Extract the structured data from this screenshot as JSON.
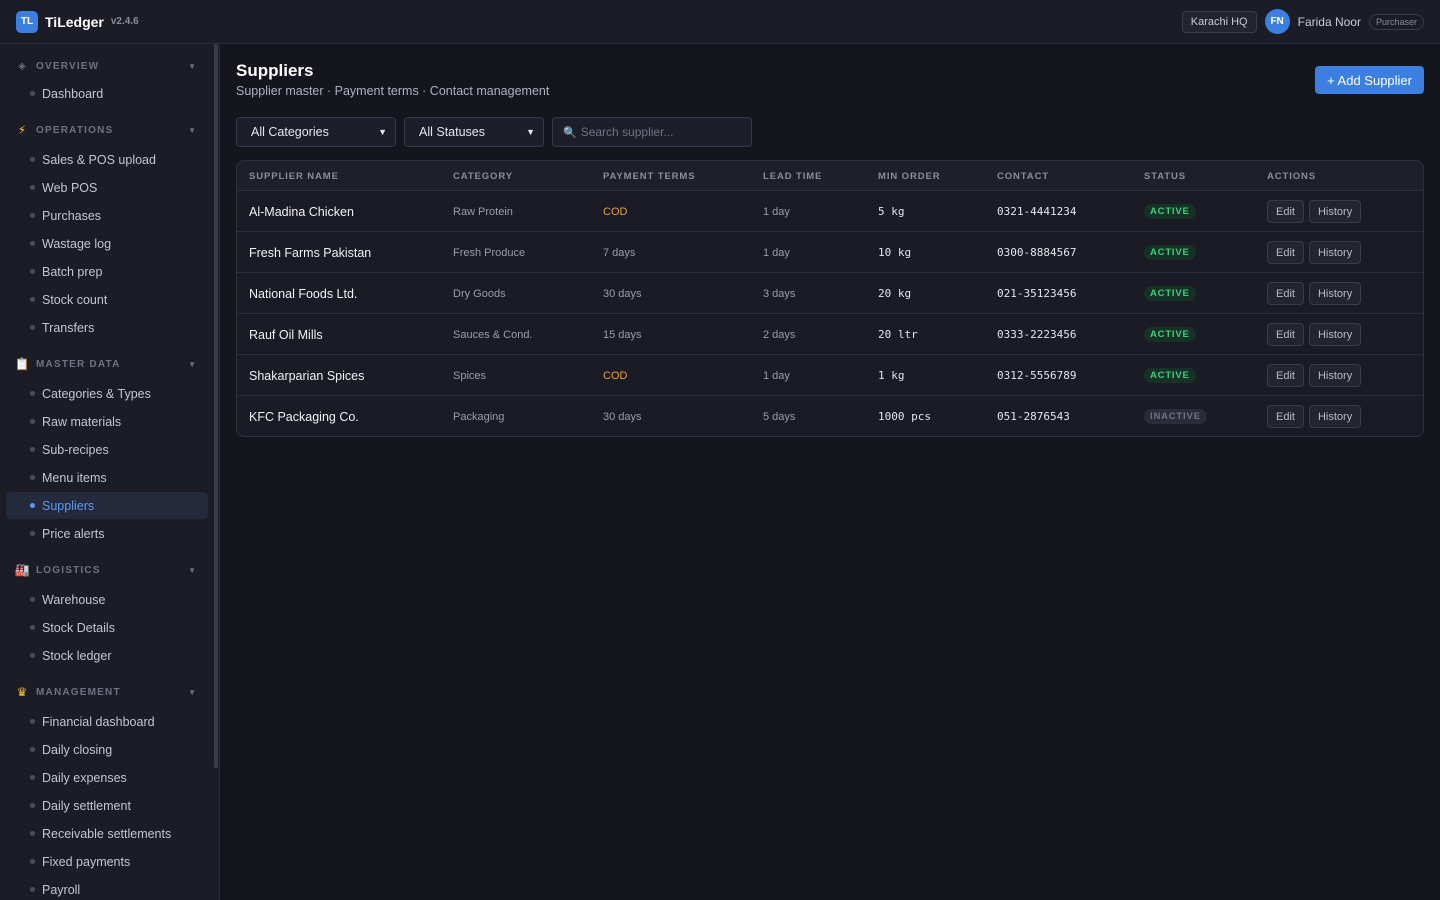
{
  "app": {
    "logo": "TL",
    "name": "TiLedger",
    "version": "v2.4.6"
  },
  "header": {
    "branch": "Karachi HQ",
    "user_initials": "FN",
    "user_name": "Farida Noor",
    "user_role": "Purchaser"
  },
  "sidebar": {
    "sections": [
      {
        "icon": "diamond-icon",
        "label": "OVERVIEW",
        "items": [
          "Dashboard"
        ]
      },
      {
        "icon": "lightning-icon",
        "label": "OPERATIONS",
        "items": [
          "Sales & POS upload",
          "Web POS",
          "Purchases",
          "Wastage log",
          "Batch prep",
          "Stock count",
          "Transfers"
        ]
      },
      {
        "icon": "clipboard-icon",
        "label": "MASTER DATA",
        "items": [
          "Categories & Types",
          "Raw materials",
          "Sub-recipes",
          "Menu items",
          "Suppliers",
          "Price alerts"
        ]
      },
      {
        "icon": "warehouse-icon",
        "label": "LOGISTICS",
        "items": [
          "Warehouse",
          "Stock Details",
          "Stock ledger"
        ]
      },
      {
        "icon": "crown-icon",
        "label": "MANAGEMENT",
        "items": [
          "Financial dashboard",
          "Daily closing",
          "Daily expenses",
          "Daily settlement",
          "Receivable settlements",
          "Fixed payments",
          "Payroll"
        ]
      }
    ],
    "active_item": "Suppliers"
  },
  "page": {
    "title": "Suppliers",
    "subtitle": "Supplier master · Payment terms · Contact management",
    "add_button": "+ Add Supplier"
  },
  "filters": {
    "category": "All Categories",
    "status": "All Statuses",
    "search_placeholder": "Search supplier..."
  },
  "table": {
    "columns": [
      "SUPPLIER NAME",
      "CATEGORY",
      "PAYMENT TERMS",
      "LEAD TIME",
      "MIN ORDER",
      "CONTACT",
      "STATUS",
      "ACTIONS"
    ],
    "rows": [
      {
        "name": "Al-Madina Chicken",
        "category": "Raw Protein",
        "terms": "COD",
        "lead": "1 day",
        "min_order": "5 kg",
        "contact": "0321-4441234",
        "status": "ACTIVE"
      },
      {
        "name": "Fresh Farms Pakistan",
        "category": "Fresh Produce",
        "terms": "7 days",
        "lead": "1 day",
        "min_order": "10 kg",
        "contact": "0300-8884567",
        "status": "ACTIVE"
      },
      {
        "name": "National Foods Ltd.",
        "category": "Dry Goods",
        "terms": "30 days",
        "lead": "3 days",
        "min_order": "20 kg",
        "contact": "021-35123456",
        "status": "ACTIVE"
      },
      {
        "name": "Rauf Oil Mills",
        "category": "Sauces & Cond.",
        "terms": "15 days",
        "lead": "2 days",
        "min_order": "20 ltr",
        "contact": "0333-2223456",
        "status": "ACTIVE"
      },
      {
        "name": "Shakarparian Spices",
        "category": "Spices",
        "terms": "COD",
        "lead": "1 day",
        "min_order": "1 kg",
        "contact": "0312-5556789",
        "status": "ACTIVE"
      },
      {
        "name": "KFC Packaging Co.",
        "category": "Packaging",
        "terms": "30 days",
        "lead": "5 days",
        "min_order": "1000 pcs",
        "contact": "051-2876543",
        "status": "INACTIVE"
      }
    ],
    "edit_label": "Edit",
    "history_label": "History"
  },
  "colors": {
    "accent": "#3d7fe0",
    "active": "#3ecf7a",
    "cod": "#f0a232"
  }
}
